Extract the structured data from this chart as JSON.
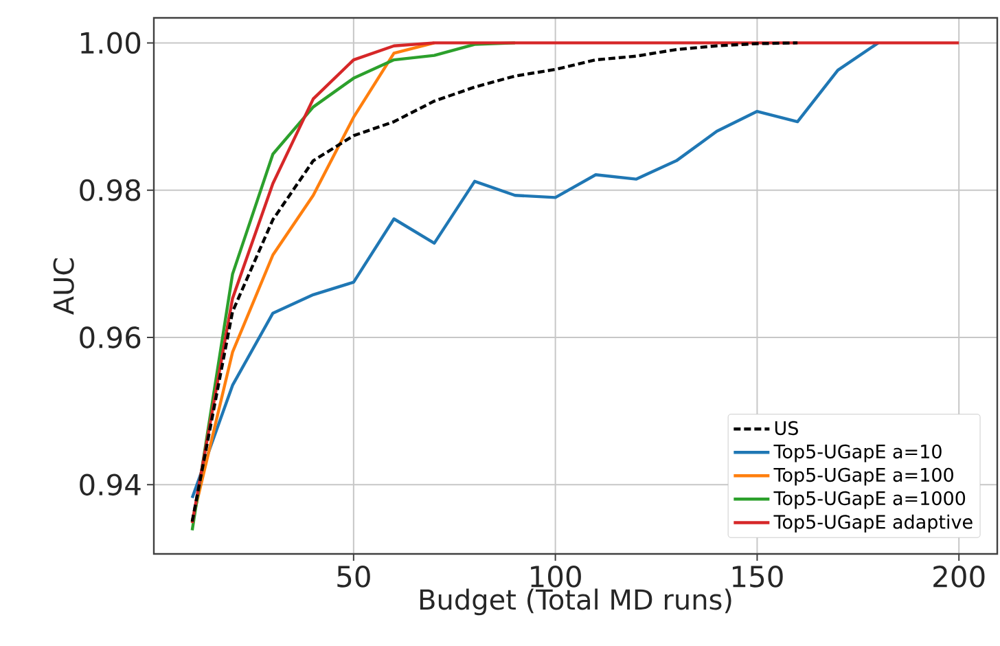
{
  "chart_data": {
    "type": "line",
    "xlabel": "Budget (Total MD runs)",
    "ylabel": "AUC",
    "x": [
      10,
      20,
      30,
      40,
      50,
      60,
      70,
      80,
      90,
      100,
      110,
      120,
      130,
      140,
      150,
      160,
      170,
      180,
      190,
      200
    ],
    "series": [
      {
        "name": "US",
        "color": "#000000",
        "line_style": "dashed",
        "values": [
          0.935,
          0.9635,
          0.976,
          0.984,
          0.9874,
          0.9893,
          0.9921,
          0.994,
          0.9955,
          0.9964,
          0.9977,
          0.9982,
          0.9991,
          0.9996,
          0.9999,
          1.0,
          null,
          null,
          null,
          null
        ]
      },
      {
        "name": "Top5-UGapE a=10",
        "color": "#1f77b4",
        "values": [
          0.9382,
          0.9535,
          0.9633,
          0.9658,
          0.9675,
          0.9761,
          0.9728,
          0.9812,
          0.9793,
          0.979,
          0.9821,
          0.9815,
          0.984,
          0.988,
          0.9907,
          0.9893,
          0.9963,
          1.0,
          null,
          null
        ]
      },
      {
        "name": "Top5-UGapE a=100",
        "color": "#ff7f0e",
        "values": [
          0.935,
          0.958,
          0.9712,
          0.9793,
          0.9899,
          0.9986,
          1.0,
          null,
          null,
          null,
          null,
          null,
          null,
          null,
          null,
          null,
          null,
          null,
          null,
          null
        ]
      },
      {
        "name": "Top5-UGapE a=1000",
        "color": "#2ca02c",
        "values": [
          0.9338,
          0.9686,
          0.9849,
          0.9913,
          0.9952,
          0.9977,
          0.9983,
          0.9998,
          1.0,
          null,
          null,
          null,
          null,
          null,
          null,
          null,
          null,
          null,
          null,
          null
        ]
      },
      {
        "name": "Top5-UGapE adaptive",
        "color": "#d62728",
        "values": [
          0.9348,
          0.9653,
          0.9809,
          0.9924,
          0.9977,
          0.9996,
          1.0,
          1.0,
          1.0,
          1.0,
          1.0,
          1.0,
          1.0,
          1.0,
          1.0,
          1.0,
          1.0,
          1.0,
          1.0,
          1.0
        ]
      }
    ],
    "xlim": [
      0.5,
      209.5
    ],
    "ylim": [
      0.9306,
      1.0034
    ],
    "xticks": [
      50,
      100,
      150,
      200
    ],
    "yticks": [
      0.94,
      0.96,
      0.98,
      {
        "value": 1.0,
        "label": "1.00"
      }
    ],
    "grid": true,
    "legend": "bottom right",
    "line_style": "solid",
    "marker": "none"
  }
}
